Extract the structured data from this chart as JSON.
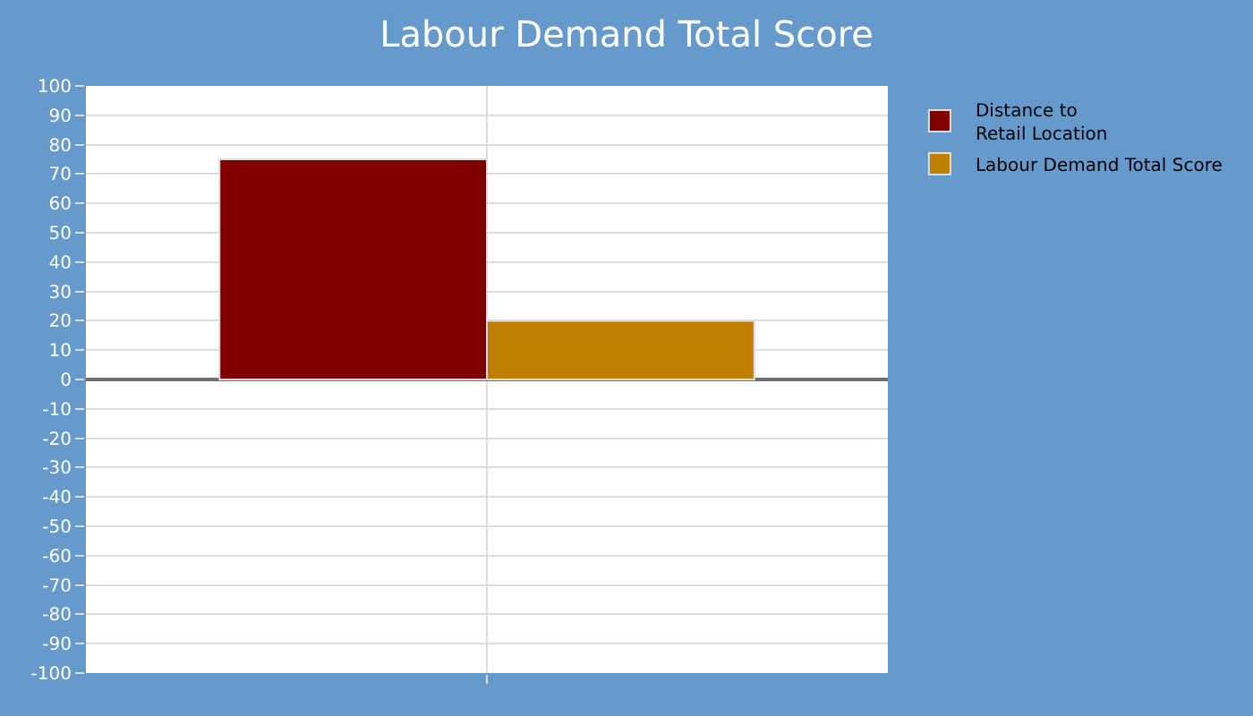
{
  "chart_data": {
    "type": "bar",
    "title": "Labour Demand Total Score",
    "categories": [
      null
    ],
    "series": [
      {
        "name": "Distance to\nRetail Location",
        "color": "#800000",
        "values": [
          75
        ]
      },
      {
        "name": "Labour Demand Total Score",
        "color": "#bf8000",
        "values": [
          20
        ]
      }
    ],
    "ylim": [
      -100,
      100
    ],
    "yticks": [
      -100,
      -90,
      -80,
      -70,
      -60,
      -50,
      -40,
      -30,
      -20,
      -10,
      0,
      10,
      20,
      30,
      40,
      50,
      60,
      70,
      80,
      90,
      100
    ],
    "grid": true,
    "legend": "top right"
  }
}
